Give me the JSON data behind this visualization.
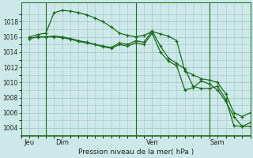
{
  "xlabel": "Pression niveau de la mer( hPa )",
  "background_color": "#cce8e8",
  "grid_color": "#aacfcf",
  "line_color": "#1a6b1a",
  "ylim": [
    1003.0,
    1020.5
  ],
  "yticks": [
    1004,
    1006,
    1008,
    1010,
    1012,
    1014,
    1016,
    1018
  ],
  "xlim": [
    0,
    168
  ],
  "xtick_positions": [
    6,
    30,
    96,
    144
  ],
  "xtick_labels": [
    "Jeu",
    "Dim",
    "Ven",
    "Sam"
  ],
  "vline_positions": [
    18,
    84,
    138
  ],
  "series1_x": [
    6,
    12,
    18,
    24,
    30,
    36,
    42,
    48,
    54,
    60,
    66,
    72,
    78,
    84,
    90,
    96,
    102,
    108,
    114,
    120,
    126,
    132,
    138,
    144,
    150,
    156,
    162,
    168
  ],
  "series1_y": [
    1016.0,
    1016.3,
    1016.5,
    1019.2,
    1019.5,
    1019.4,
    1019.2,
    1018.9,
    1018.5,
    1018.0,
    1017.3,
    1016.5,
    1016.2,
    1016.0,
    1016.2,
    1016.7,
    1016.4,
    1016.1,
    1015.5,
    1011.5,
    1011.0,
    1010.5,
    1010.3,
    1010.0,
    1008.5,
    1006.0,
    1005.5,
    1006.0
  ],
  "series2_x": [
    6,
    12,
    18,
    24,
    30,
    36,
    42,
    48,
    54,
    60,
    66,
    72,
    78,
    84,
    90,
    96,
    102,
    108,
    114,
    120,
    126,
    132,
    138,
    144,
    150,
    156,
    162,
    168
  ],
  "series2_y": [
    1015.8,
    1016.0,
    1016.0,
    1016.1,
    1016.0,
    1015.8,
    1015.5,
    1015.3,
    1015.0,
    1014.8,
    1014.6,
    1015.2,
    1015.0,
    1015.5,
    1015.3,
    1016.8,
    1014.8,
    1013.2,
    1012.5,
    1011.8,
    1009.5,
    1009.2,
    1009.2,
    1009.5,
    1007.8,
    1004.3,
    1004.2,
    1004.7
  ],
  "series3_x": [
    6,
    12,
    18,
    24,
    30,
    36,
    42,
    48,
    54,
    60,
    66,
    72,
    78,
    84,
    90,
    96,
    102,
    108,
    114,
    120,
    126,
    132,
    138,
    144,
    150,
    156,
    162,
    168
  ],
  "series3_y": [
    1015.8,
    1016.0,
    1016.0,
    1016.0,
    1015.9,
    1015.7,
    1015.4,
    1015.2,
    1015.0,
    1014.7,
    1014.5,
    1015.0,
    1014.8,
    1015.2,
    1015.0,
    1016.5,
    1014.0,
    1012.8,
    1012.2,
    1009.0,
    1009.3,
    1010.2,
    1009.8,
    1009.0,
    1007.5,
    1005.5,
    1004.2,
    1004.2
  ]
}
